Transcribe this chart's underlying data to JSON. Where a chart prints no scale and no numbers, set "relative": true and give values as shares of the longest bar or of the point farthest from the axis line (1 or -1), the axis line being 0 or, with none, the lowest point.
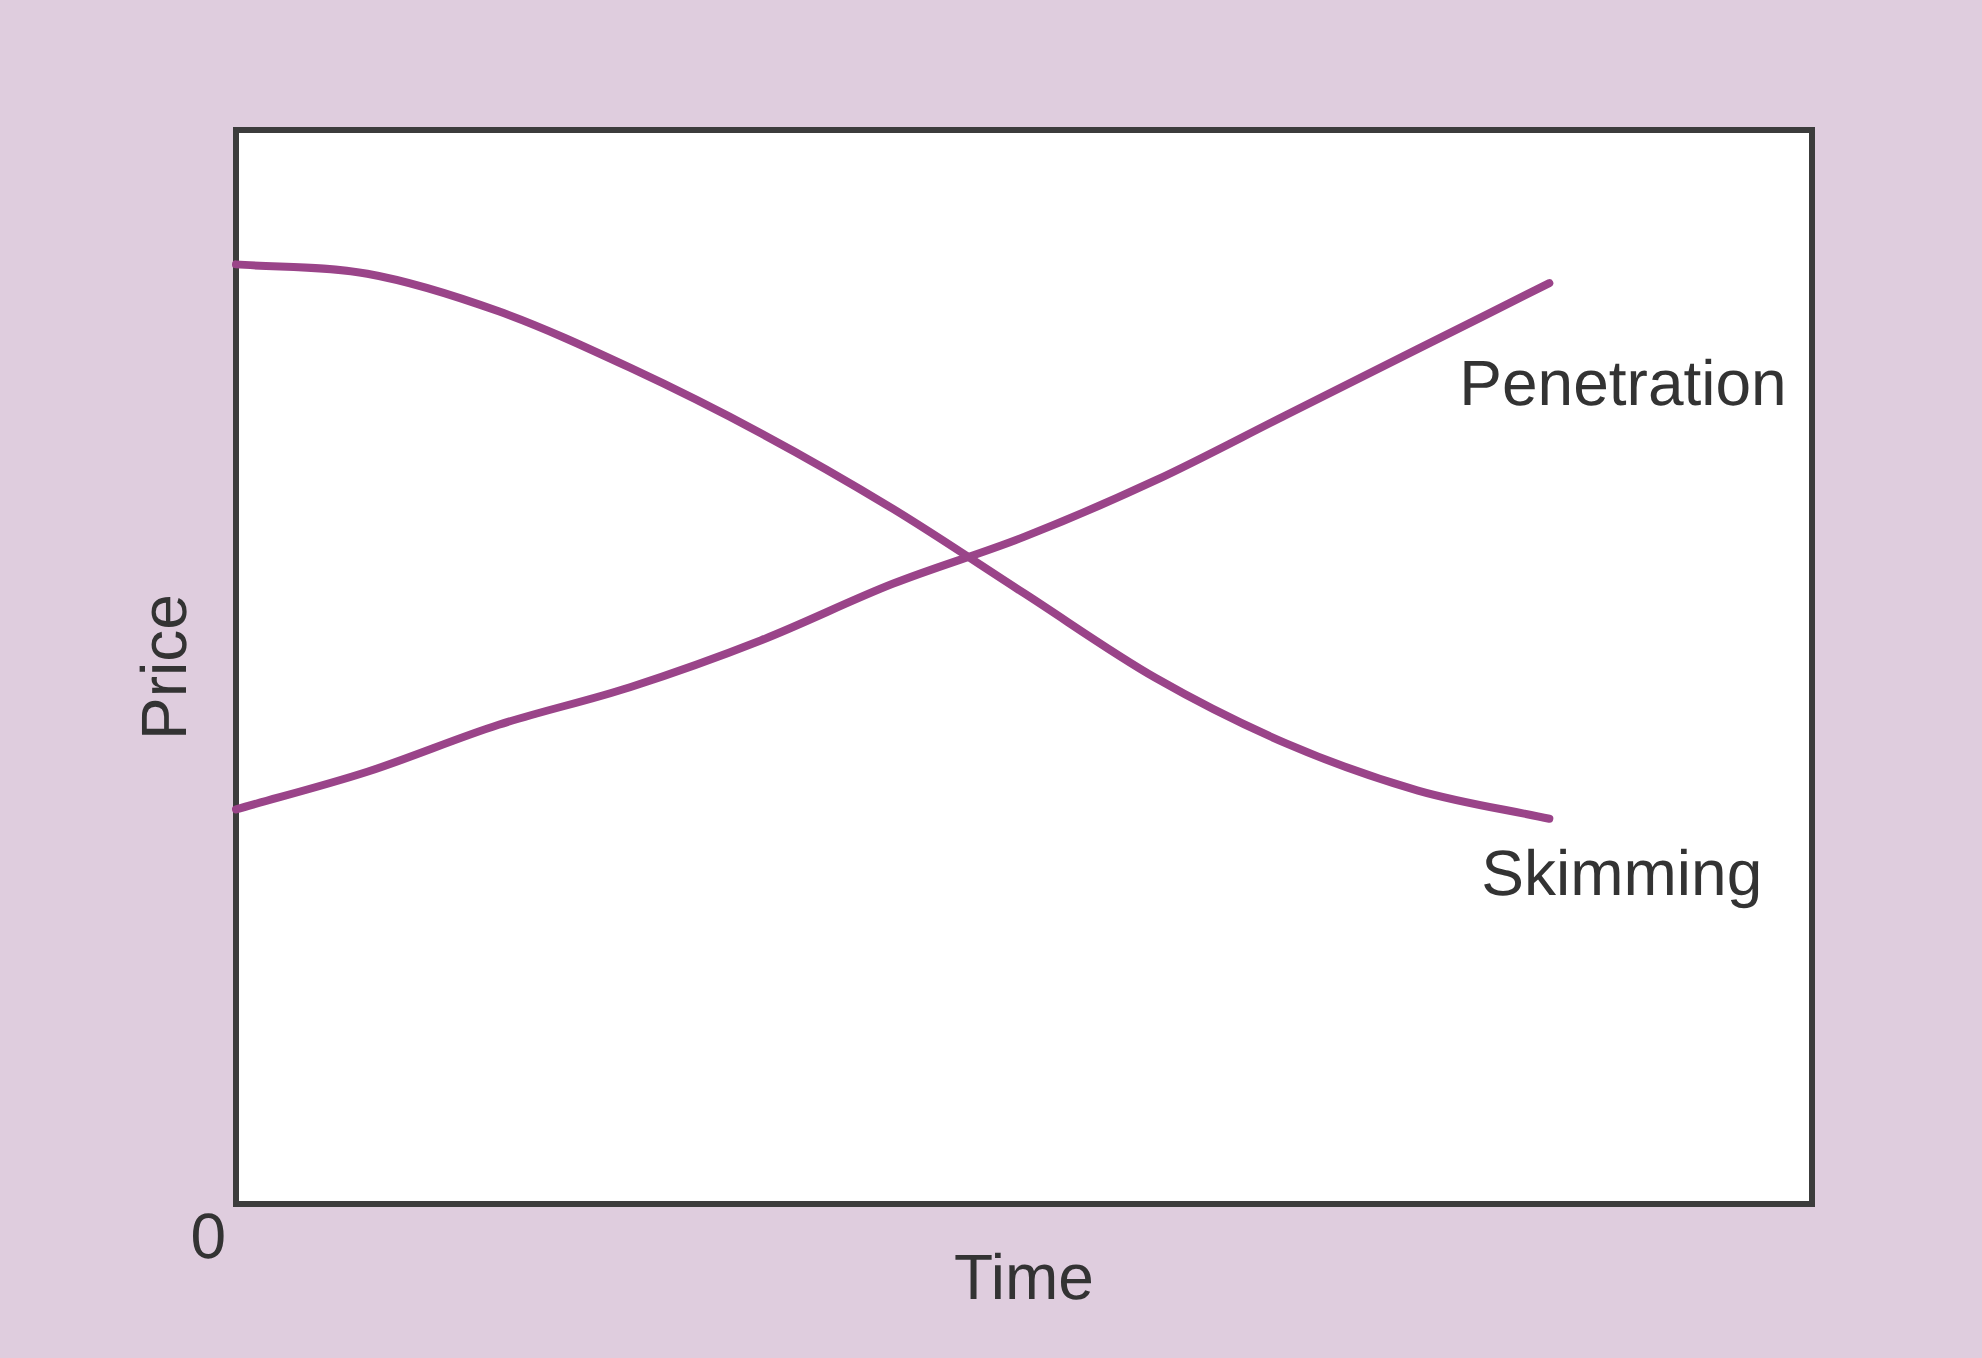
{
  "chart_data": {
    "type": "line",
    "relative": true,
    "xlabel": "Time",
    "ylabel": "Price",
    "categories": [
      null,
      null,
      null,
      null,
      null,
      null,
      null,
      null,
      null,
      null,
      null,
      null,
      null
    ],
    "series": [
      {
        "name": "Skimming",
        "color": "#9a4489",
        "values": [
          1,
          0.99,
          0.95,
          0.89,
          0.82,
          0.74,
          0.65,
          0.56,
          0.49,
          0.44,
          0.41,
          null,
          null
        ]
      },
      {
        "name": "Penetration",
        "color": "#9a4489",
        "values": [
          0.42,
          0.46,
          0.51,
          0.55,
          0.6,
          0.66,
          0.71,
          0.77,
          0.84,
          0.91,
          0.98,
          null,
          null
        ]
      }
    ],
    "annotations": [
      "0"
    ],
    "marker": "none",
    "line_style": "solid",
    "legend": false
  }
}
